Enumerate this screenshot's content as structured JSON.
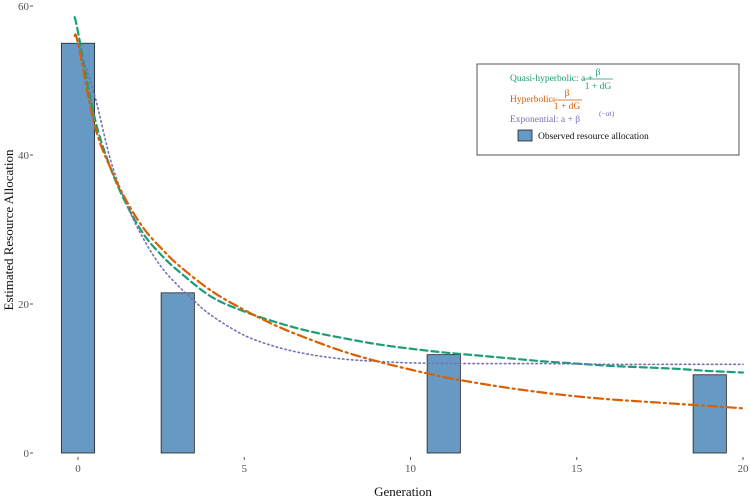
{
  "chart_data": {
    "type": "bar",
    "xlabel": "Generation",
    "ylabel": "Estimated Resource Allocation",
    "xlim": [
      -1,
      20
    ],
    "ylim": [
      0,
      60
    ],
    "x_ticks": [
      0,
      5,
      10,
      15,
      20
    ],
    "y_ticks": [
      0,
      20,
      40,
      60
    ],
    "grid": false,
    "legend_position": "top-right",
    "bars": {
      "name": "Observed resource allocation",
      "x": [
        0,
        3,
        11,
        19
      ],
      "values": [
        55,
        21.5,
        13.2,
        10.5
      ],
      "color": "#6699c4"
    },
    "series": [
      {
        "name": "Quasi-hyperbolic",
        "formula_prefix": "Quasi-hyperbolic: a + ",
        "formula_num": "β",
        "formula_den": "1 + dG",
        "color": "#1a9e77",
        "style": "dashed",
        "x": [
          -0.1,
          0,
          0.5,
          1,
          1.5,
          2,
          2.5,
          3,
          4,
          5,
          6,
          7,
          8,
          9,
          10,
          11,
          12,
          13,
          14,
          15,
          16,
          17,
          18,
          19,
          20
        ],
        "values": [
          58.5,
          56.5,
          45,
          38,
          33,
          29.2,
          26.6,
          24.5,
          21.0,
          19.0,
          17.5,
          16.3,
          15.4,
          14.6,
          14.0,
          13.5,
          13.1,
          12.7,
          12.3,
          12.0,
          11.7,
          11.5,
          11.3,
          11.0,
          10.8
        ]
      },
      {
        "name": "Hyperbolic",
        "formula_prefix": "Hyperbolic: ",
        "formula_num": "β",
        "formula_den": "1 + dG",
        "color": "#d95f02",
        "style": "dashdot",
        "x": [
          -0.1,
          0,
          0.5,
          1,
          1.5,
          2,
          2.5,
          3,
          4,
          5,
          6,
          7,
          8,
          9,
          10,
          11,
          12,
          13,
          14,
          15,
          16,
          17,
          18,
          19,
          20
        ],
        "values": [
          56,
          55,
          44,
          38,
          33.5,
          30,
          27.5,
          25.3,
          21.8,
          19.2,
          17,
          15.2,
          13.6,
          12.3,
          11.2,
          10.2,
          9.4,
          8.7,
          8.1,
          7.6,
          7.2,
          6.9,
          6.6,
          6.3,
          6.0
        ]
      },
      {
        "name": "Exponential",
        "formula_prefix": "Exponential: a + β",
        "formula_sup": "(−αt)",
        "color": "#7570b3",
        "style": "dotted",
        "x": [
          0,
          0.5,
          1,
          1.5,
          2,
          2.5,
          3,
          3.5,
          4,
          5,
          6,
          7,
          8,
          9,
          10,
          12,
          14,
          16,
          18,
          20
        ],
        "values": [
          55,
          48,
          39,
          33,
          28.5,
          25,
          22.5,
          20.4,
          18.5,
          15.8,
          14.2,
          13.2,
          12.6,
          12.3,
          12.1,
          12.0,
          12.0,
          11.9,
          11.9,
          11.9
        ]
      }
    ]
  }
}
